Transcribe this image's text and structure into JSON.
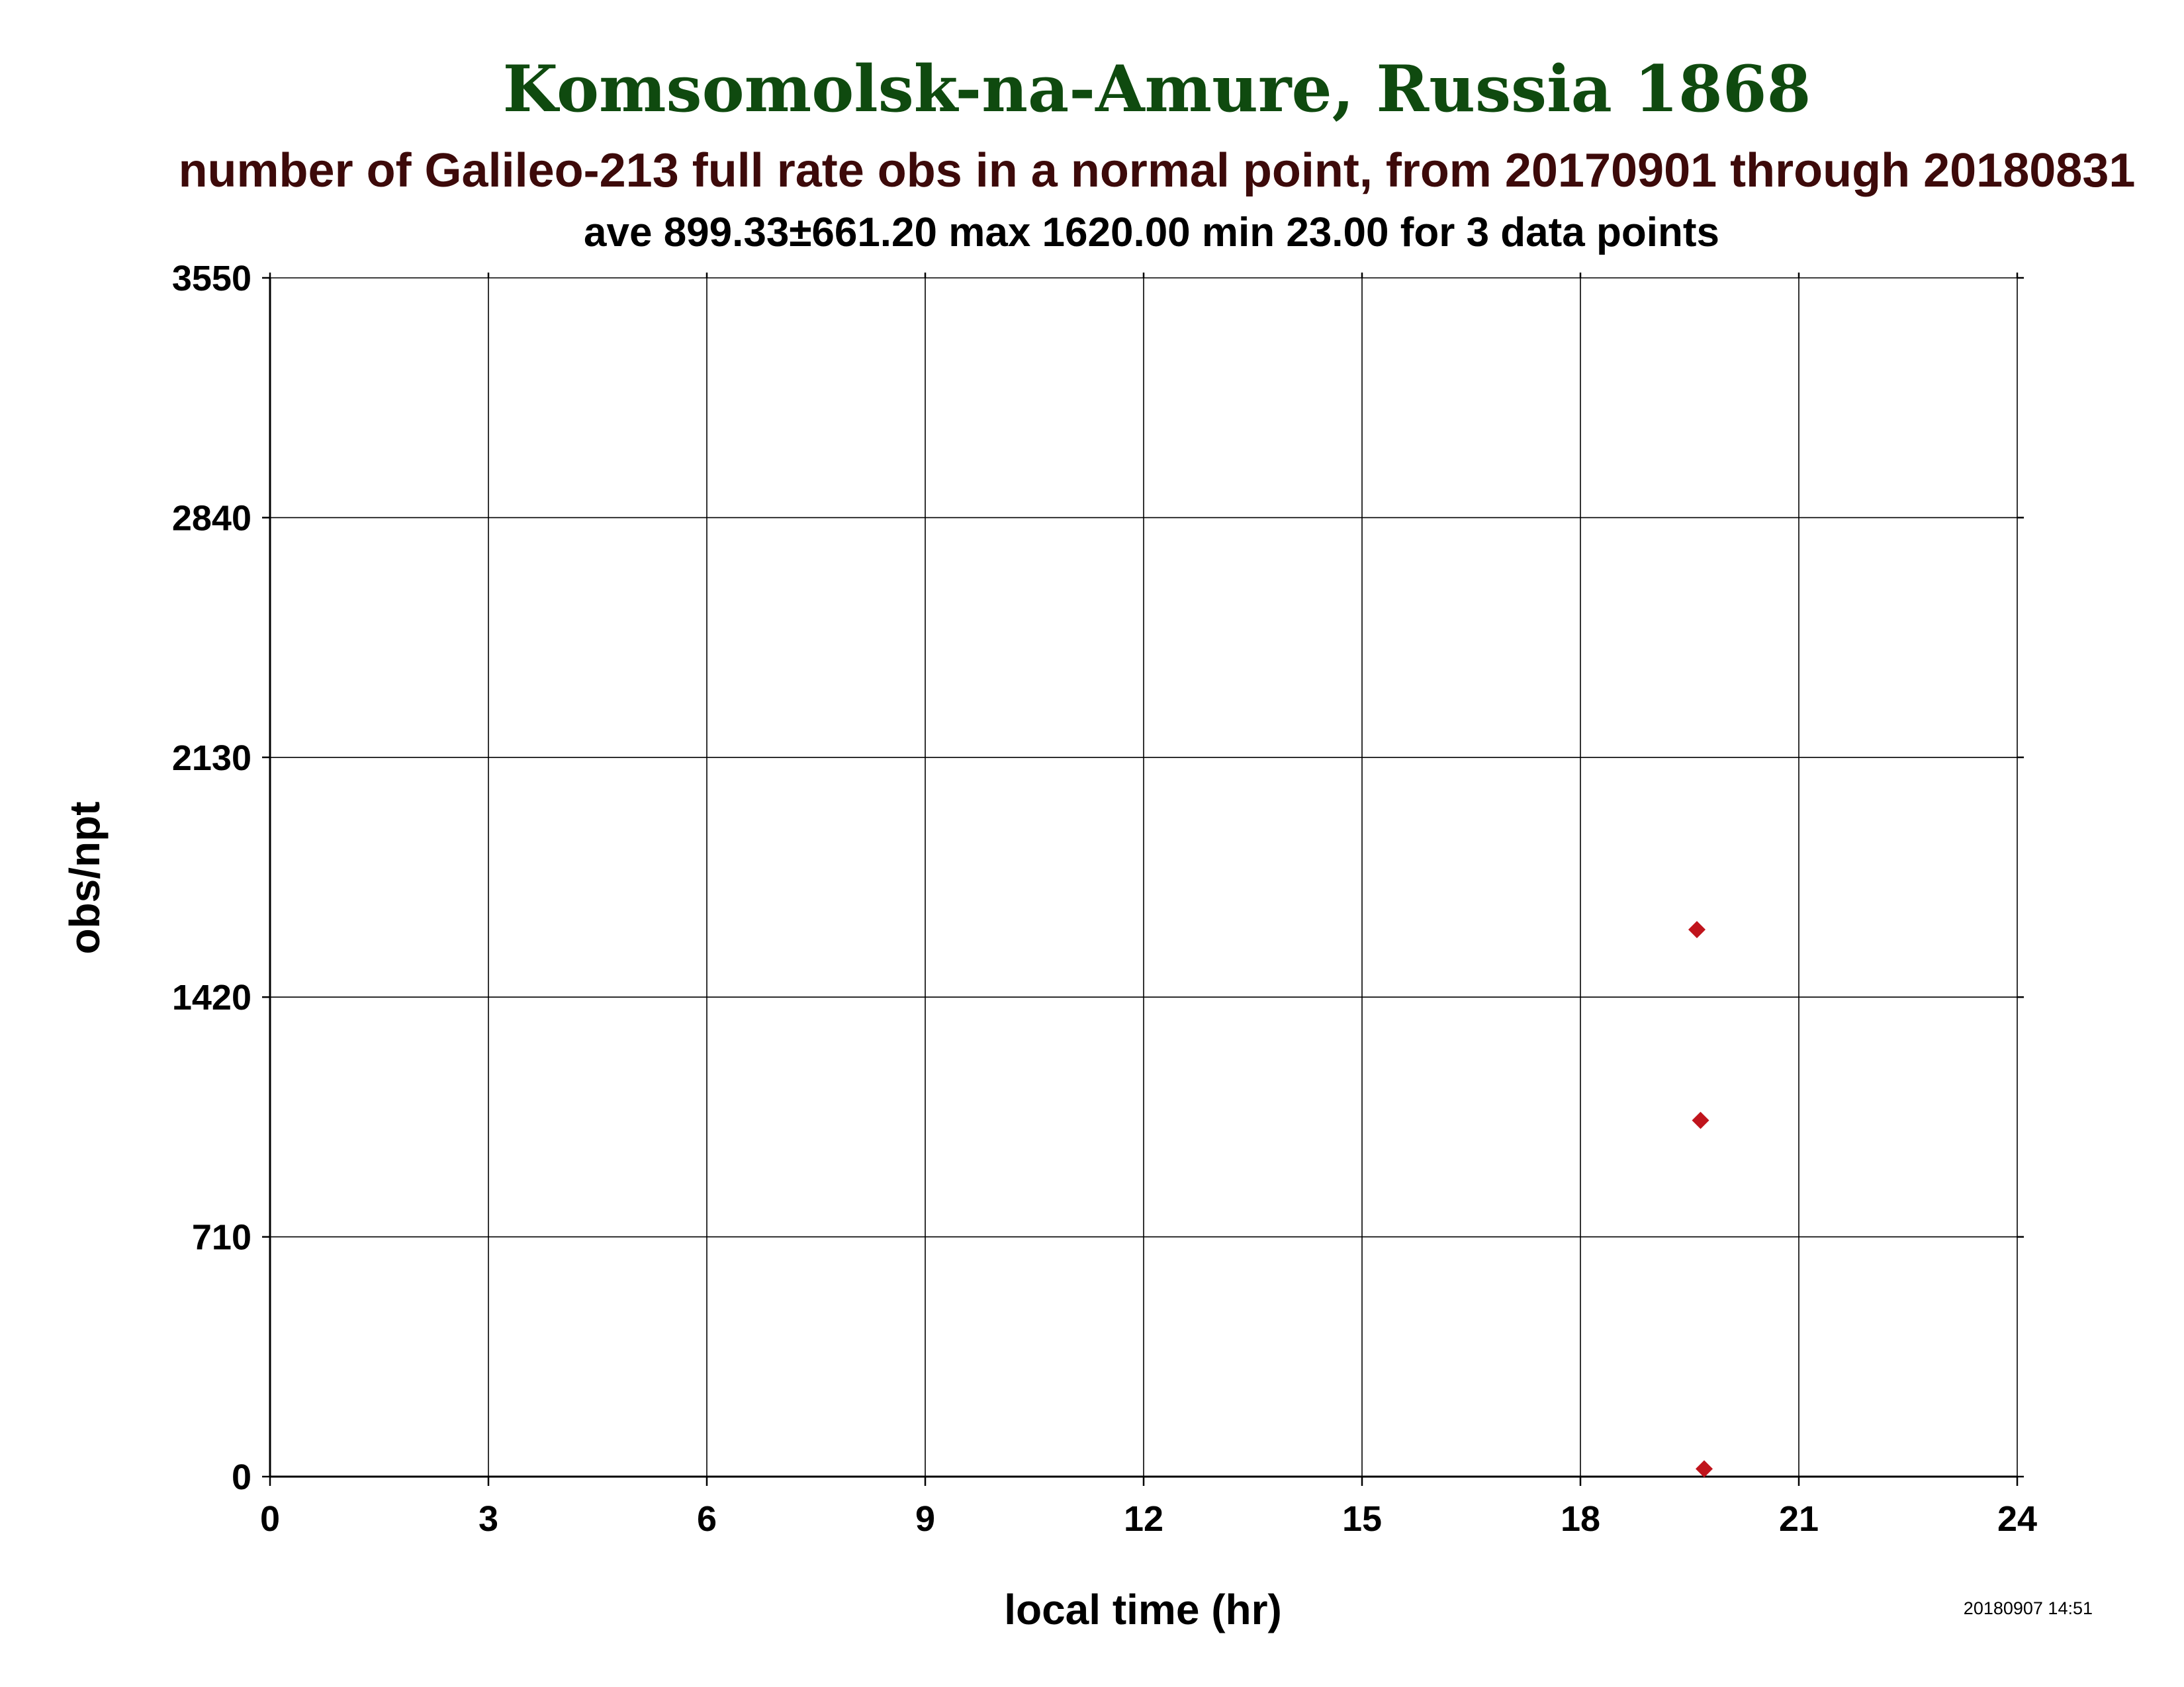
{
  "chart_data": {
    "type": "scatter",
    "title": "Komsomolsk-na-Amure, Russia 1868",
    "subtitle": "number of Galileo-213 full rate obs in a normal point, from 20170901 through 20180831",
    "stats_line": "ave 899.33±661.20 max 1620.00 min 23.00 for 3 data points",
    "xlabel": "local time (hr)",
    "ylabel": "obs/npt",
    "xlim": [
      0,
      24
    ],
    "ylim": [
      0,
      3550
    ],
    "xticks": [
      0,
      3,
      6,
      9,
      12,
      15,
      18,
      21,
      24
    ],
    "yticks": [
      0,
      710,
      1420,
      2130,
      2840,
      3550
    ],
    "grid": true,
    "series": [
      {
        "marker": "diamond",
        "color": "#c0141c",
        "points": [
          {
            "x": 19.6,
            "y": 1620
          },
          {
            "x": 19.65,
            "y": 1055
          },
          {
            "x": 19.7,
            "y": 23
          }
        ]
      }
    ],
    "timestamp": "20180907 14:51"
  },
  "colors": {
    "title": "#0f4a0f",
    "subtitle": "#3d0a0a",
    "text": "#000000",
    "grid": "#000000",
    "marker": "#c0141c"
  }
}
